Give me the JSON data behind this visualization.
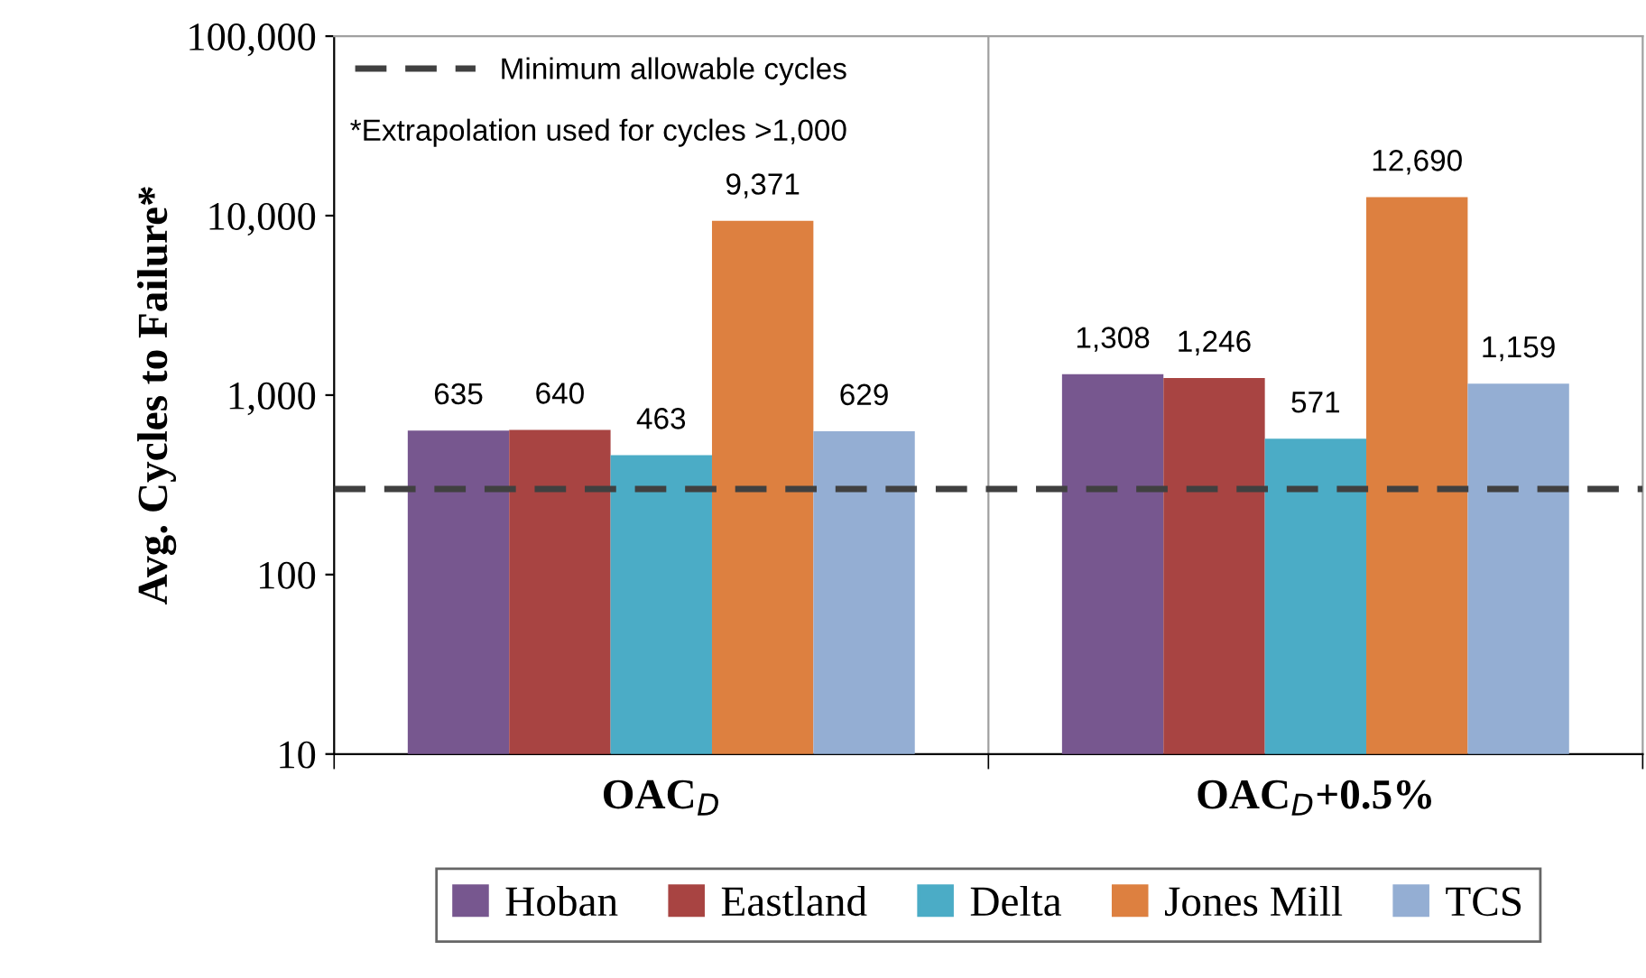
{
  "chart_data": {
    "type": "bar",
    "ylabel": "Avg. Cycles to Failure*",
    "categories": [
      "OAC$_{D}$",
      "OAC$_{D}$+0.5%"
    ],
    "series": [
      {
        "name": "Hoban",
        "color": "#77578f",
        "values": [
          635,
          1308
        ],
        "value_labels": [
          "635",
          "1,308"
        ]
      },
      {
        "name": "Eastland",
        "color": "#a84442",
        "values": [
          640,
          1246
        ],
        "value_labels": [
          "640",
          "1,246"
        ]
      },
      {
        "name": "Delta",
        "color": "#4bacc6",
        "values": [
          463,
          571
        ],
        "value_labels": [
          "463",
          "571"
        ]
      },
      {
        "name": "Jones Mill",
        "color": "#dd8040",
        "values": [
          9371,
          12690
        ],
        "value_labels": [
          "9,371",
          "12,690"
        ]
      },
      {
        "name": "TCS",
        "color": "#94aed3",
        "values": [
          629,
          1159
        ],
        "value_labels": [
          "629",
          "1,159"
        ]
      }
    ],
    "log": true,
    "ylim": [
      10,
      100000
    ],
    "yticks": [
      {
        "value": 10,
        "label": "10"
      },
      {
        "value": 100,
        "label": "100"
      },
      {
        "value": 1000,
        "label": "1,000"
      },
      {
        "value": 10000,
        "label": "10,000"
      },
      {
        "value": 100000,
        "label": "100,000"
      }
    ],
    "ref_lines": [
      {
        "axis": "y",
        "value": 300,
        "label": "Minimum allowable cycles",
        "color": "#404040",
        "line_style": "dashed"
      }
    ],
    "annotations": [
      "*Extrapolation used for cycles >1,000"
    ],
    "grid": "x",
    "legend": "bottom"
  }
}
